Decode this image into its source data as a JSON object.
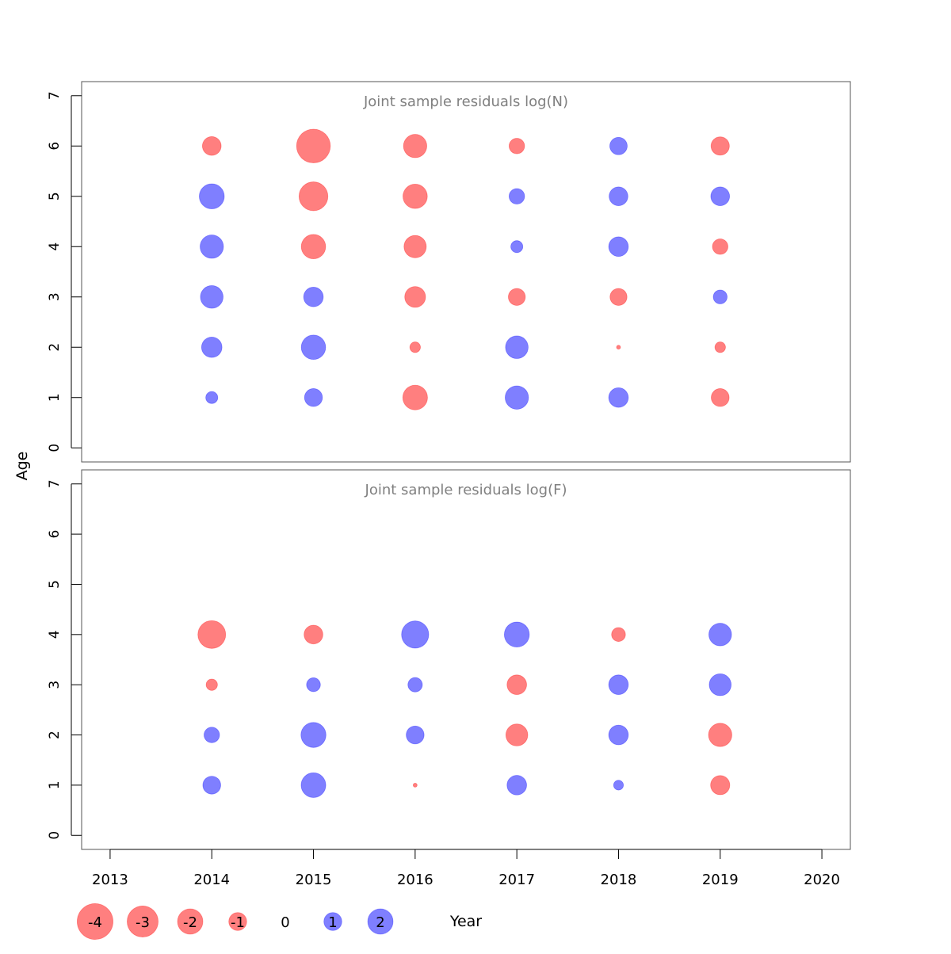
{
  "chart_data": {
    "type": "scatter",
    "subtype": "bubble",
    "xlabel": "Year",
    "ylabel": "Age",
    "x_ticks": [
      2013,
      2014,
      2015,
      2016,
      2017,
      2018,
      2019,
      2020
    ],
    "xlim": [
      2012.72,
      2020.28
    ],
    "y_ticks": [
      0,
      1,
      2,
      3,
      4,
      5,
      6,
      7
    ],
    "ylim": [
      -0.28,
      7.28
    ],
    "colors": {
      "negative": "#ff0000",
      "positive": "#0000ff",
      "opacity": 0.5
    },
    "legend": {
      "placement": "bottom",
      "items": [
        {
          "label": "-4",
          "value": -4
        },
        {
          "label": "-3",
          "value": -3
        },
        {
          "label": "-2",
          "value": -2
        },
        {
          "label": "-1",
          "value": -1
        },
        {
          "label": "0",
          "value": 0
        },
        {
          "label": "1",
          "value": 1
        },
        {
          "label": "2",
          "value": 2
        }
      ]
    },
    "panels": [
      {
        "title": "Joint sample residuals log(N)",
        "points": [
          {
            "year": 2014,
            "age": 1,
            "residual": 0.45
          },
          {
            "year": 2014,
            "age": 2,
            "residual": 1.3
          },
          {
            "year": 2014,
            "age": 3,
            "residual": 1.6
          },
          {
            "year": 2014,
            "age": 4,
            "residual": 1.7
          },
          {
            "year": 2014,
            "age": 5,
            "residual": 1.95
          },
          {
            "year": 2014,
            "age": 6,
            "residual": -1.1
          },
          {
            "year": 2015,
            "age": 1,
            "residual": 1.0
          },
          {
            "year": 2015,
            "age": 2,
            "residual": 1.85
          },
          {
            "year": 2015,
            "age": 3,
            "residual": 1.2
          },
          {
            "year": 2015,
            "age": 4,
            "residual": -1.85
          },
          {
            "year": 2015,
            "age": 5,
            "residual": -2.6
          },
          {
            "year": 2015,
            "age": 6,
            "residual": -3.55
          },
          {
            "year": 2016,
            "age": 1,
            "residual": -1.9
          },
          {
            "year": 2016,
            "age": 2,
            "residual": -0.35
          },
          {
            "year": 2016,
            "age": 3,
            "residual": -1.35
          },
          {
            "year": 2016,
            "age": 4,
            "residual": -1.55
          },
          {
            "year": 2016,
            "age": 5,
            "residual": -1.85
          },
          {
            "year": 2016,
            "age": 6,
            "residual": -1.7
          },
          {
            "year": 2017,
            "age": 1,
            "residual": 1.7
          },
          {
            "year": 2017,
            "age": 2,
            "residual": 1.6
          },
          {
            "year": 2017,
            "age": 3,
            "residual": -0.9
          },
          {
            "year": 2017,
            "age": 4,
            "residual": 0.45
          },
          {
            "year": 2017,
            "age": 5,
            "residual": 0.75
          },
          {
            "year": 2017,
            "age": 6,
            "residual": -0.75
          },
          {
            "year": 2018,
            "age": 1,
            "residual": 1.2
          },
          {
            "year": 2018,
            "age": 2,
            "residual": -0.05
          },
          {
            "year": 2018,
            "age": 3,
            "residual": -0.9
          },
          {
            "year": 2018,
            "age": 4,
            "residual": 1.2
          },
          {
            "year": 2018,
            "age": 5,
            "residual": 1.1
          },
          {
            "year": 2018,
            "age": 6,
            "residual": 0.95
          },
          {
            "year": 2019,
            "age": 1,
            "residual": -1.0
          },
          {
            "year": 2019,
            "age": 2,
            "residual": -0.35
          },
          {
            "year": 2019,
            "age": 3,
            "residual": 0.6
          },
          {
            "year": 2019,
            "age": 4,
            "residual": -0.75
          },
          {
            "year": 2019,
            "age": 5,
            "residual": 1.1
          },
          {
            "year": 2019,
            "age": 6,
            "residual": -1.05
          }
        ]
      },
      {
        "title": "Joint sample residuals log(F)",
        "points": [
          {
            "year": 2014,
            "age": 1,
            "residual": 1.0
          },
          {
            "year": 2014,
            "age": 2,
            "residual": 0.75
          },
          {
            "year": 2014,
            "age": 3,
            "residual": -0.4
          },
          {
            "year": 2014,
            "age": 4,
            "residual": -2.4
          },
          {
            "year": 2015,
            "age": 1,
            "residual": 1.9
          },
          {
            "year": 2015,
            "age": 2,
            "residual": 1.95
          },
          {
            "year": 2015,
            "age": 3,
            "residual": 0.6
          },
          {
            "year": 2015,
            "age": 4,
            "residual": -1.1
          },
          {
            "year": 2016,
            "age": 1,
            "residual": -0.05
          },
          {
            "year": 2016,
            "age": 2,
            "residual": 1.0
          },
          {
            "year": 2016,
            "age": 3,
            "residual": 0.65
          },
          {
            "year": 2016,
            "age": 4,
            "residual": 2.3
          },
          {
            "year": 2017,
            "age": 1,
            "residual": 1.2
          },
          {
            "year": 2017,
            "age": 2,
            "residual": -1.5
          },
          {
            "year": 2017,
            "age": 3,
            "residual": -1.2
          },
          {
            "year": 2017,
            "age": 4,
            "residual": 1.95
          },
          {
            "year": 2018,
            "age": 1,
            "residual": 0.3
          },
          {
            "year": 2018,
            "age": 2,
            "residual": 1.2
          },
          {
            "year": 2018,
            "age": 3,
            "residual": 1.2
          },
          {
            "year": 2018,
            "age": 4,
            "residual": -0.6
          },
          {
            "year": 2019,
            "age": 1,
            "residual": -1.15
          },
          {
            "year": 2019,
            "age": 2,
            "residual": -1.7
          },
          {
            "year": 2019,
            "age": 3,
            "residual": 1.5
          },
          {
            "year": 2019,
            "age": 4,
            "residual": 1.6
          }
        ]
      }
    ]
  }
}
